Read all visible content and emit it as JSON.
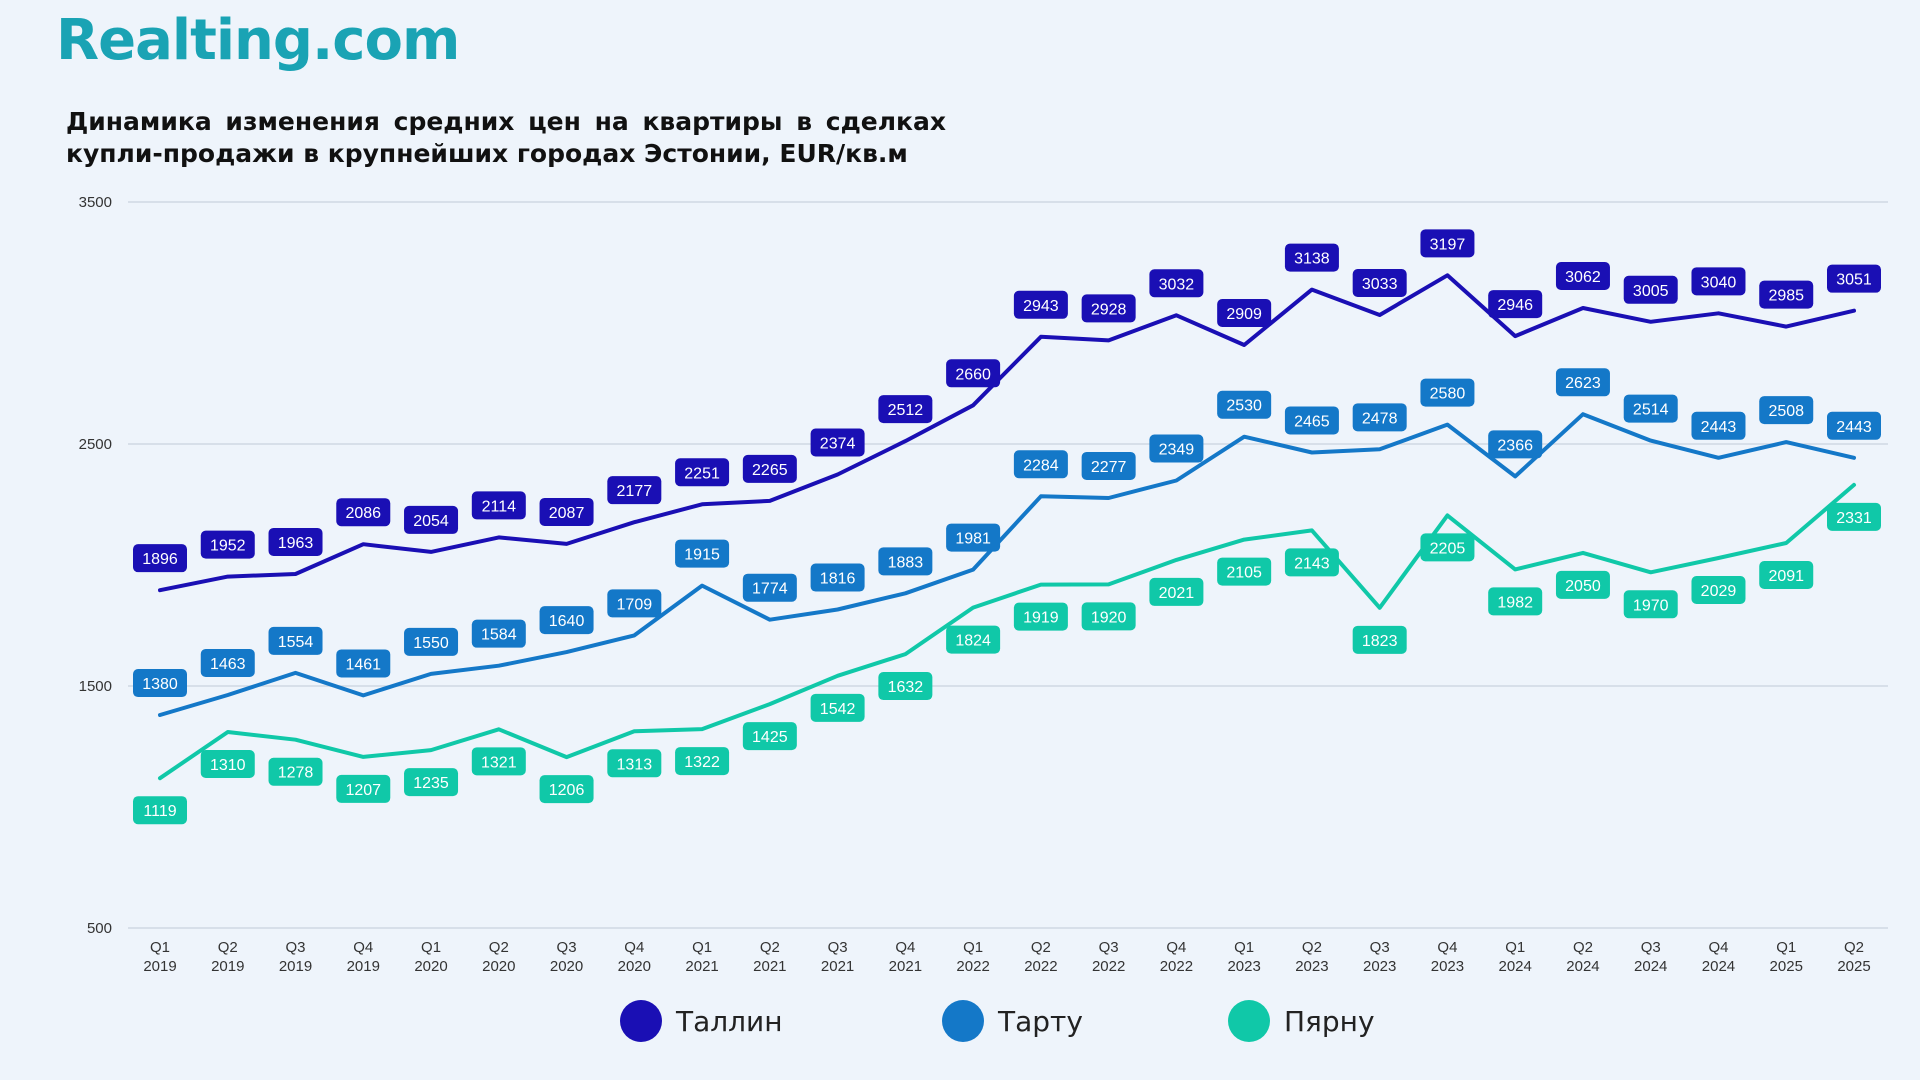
{
  "logo": {
    "text": "Realting.com"
  },
  "chart_data": {
    "type": "line",
    "title": "Динамика изменения средних цен на квартиры в сделках купли-продажи в крупнейших городах Эстонии, EUR/кв.м",
    "ylim": [
      500,
      3500
    ],
    "yticks": [
      500,
      1500,
      2500,
      3500
    ],
    "grid": true,
    "legend_position": "bottom",
    "categories": [
      [
        "Q1",
        "2019"
      ],
      [
        "Q2",
        "2019"
      ],
      [
        "Q3",
        "2019"
      ],
      [
        "Q4",
        "2019"
      ],
      [
        "Q1",
        "2020"
      ],
      [
        "Q2",
        "2020"
      ],
      [
        "Q3",
        "2020"
      ],
      [
        "Q4",
        "2020"
      ],
      [
        "Q1",
        "2021"
      ],
      [
        "Q2",
        "2021"
      ],
      [
        "Q3",
        "2021"
      ],
      [
        "Q4",
        "2021"
      ],
      [
        "Q1",
        "2022"
      ],
      [
        "Q2",
        "2022"
      ],
      [
        "Q3",
        "2022"
      ],
      [
        "Q4",
        "2022"
      ],
      [
        "Q1",
        "2023"
      ],
      [
        "Q2",
        "2023"
      ],
      [
        "Q3",
        "2023"
      ],
      [
        "Q4",
        "2023"
      ],
      [
        "Q1",
        "2024"
      ],
      [
        "Q2",
        "2024"
      ],
      [
        "Q3",
        "2024"
      ],
      [
        "Q4",
        "2024"
      ],
      [
        "Q1",
        "2025"
      ],
      [
        "Q2",
        "2025"
      ]
    ],
    "series": [
      {
        "name": "Таллин",
        "color": "#1a0fb4",
        "label_position": "above",
        "values": [
          1896,
          1952,
          1963,
          2086,
          2054,
          2114,
          2087,
          2177,
          2251,
          2265,
          2374,
          2512,
          2660,
          2943,
          2928,
          3032,
          2909,
          3138,
          3033,
          3197,
          2946,
          3062,
          3005,
          3040,
          2985,
          3051
        ]
      },
      {
        "name": "Тарту",
        "color": "#1478c8",
        "label_position": "above",
        "values": [
          1380,
          1463,
          1554,
          1461,
          1550,
          1584,
          1640,
          1709,
          1915,
          1774,
          1816,
          1883,
          1981,
          2284,
          2277,
          2349,
          2530,
          2465,
          2478,
          2580,
          2366,
          2623,
          2514,
          2443,
          2508,
          2443
        ]
      },
      {
        "name": "Пярну",
        "color": "#10c8a8",
        "label_position": "below",
        "values": [
          1119,
          1310,
          1278,
          1207,
          1235,
          1321,
          1206,
          1313,
          1322,
          1425,
          1542,
          1632,
          1824,
          1919,
          1920,
          2021,
          2105,
          2143,
          1823,
          2205,
          1982,
          2050,
          1970,
          2029,
          2091,
          2331
        ]
      }
    ]
  }
}
